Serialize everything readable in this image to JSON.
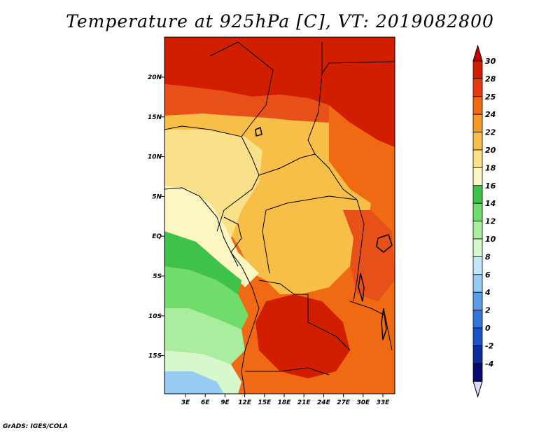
{
  "title": "Temperature at 925hPa [C], VT: 2019082800",
  "credit": "GrADS: IGES/COLA",
  "map": {
    "lat_ticks": [
      "20N",
      "15N",
      "10N",
      "5N",
      "EQ",
      "5S",
      "10S",
      "15S"
    ],
    "lon_ticks": [
      "3E",
      "6E",
      "9E",
      "12E",
      "15E",
      "18E",
      "21E",
      "24E",
      "27E",
      "30E",
      "33E"
    ]
  },
  "colorbar": {
    "labels": [
      "30",
      "28",
      "25",
      "24",
      "22",
      "20",
      "18",
      "16",
      "14",
      "12",
      "10",
      "8",
      "6",
      "4",
      "2",
      "0",
      "-2",
      "-4"
    ],
    "colors": [
      "#d21e00",
      "#e83a10",
      "#f06a14",
      "#f59a28",
      "#f8bf48",
      "#fbe08a",
      "#fcf6c2",
      "#3ec24a",
      "#6fdc6c",
      "#a8ee9e",
      "#d6f8cc",
      "#c4e6fa",
      "#96ccf4",
      "#5a9eea",
      "#3276dc",
      "#1a52c8",
      "#0a2c9c",
      "#060a70"
    ],
    "top_arrow_color": "#c00000",
    "bottom_arrow_color": "#d8d8f8"
  },
  "colors": {
    "hot": "#d21e00",
    "warm": "#f06a14",
    "mild": "#f8bf48",
    "pale": "#fbe08a",
    "green": "#3ec24a",
    "lightgreen": "#a8ee9e",
    "sky": "#96ccf4"
  }
}
